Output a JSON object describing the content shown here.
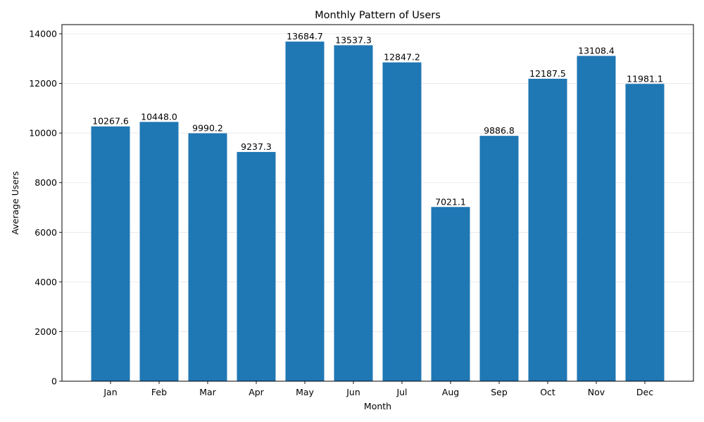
{
  "chart_data": {
    "type": "bar",
    "title": "Monthly Pattern of Users",
    "xlabel": "Month",
    "ylabel": "Average Users",
    "categories": [
      "Jan",
      "Feb",
      "Mar",
      "Apr",
      "May",
      "Jun",
      "Jul",
      "Aug",
      "Sep",
      "Oct",
      "Nov",
      "Dec"
    ],
    "values": [
      10267.6,
      10448.0,
      9990.2,
      9237.3,
      13684.7,
      13537.3,
      12847.2,
      7021.1,
      9886.8,
      12187.5,
      13108.4,
      11981.1
    ],
    "value_labels": [
      "10267.6",
      "10448.0",
      "9990.2",
      "9237.3",
      "13684.7",
      "13537.3",
      "12847.2",
      "7021.1",
      "9886.8",
      "12187.5",
      "13108.4",
      "11981.1"
    ],
    "ylim": [
      0,
      14368.9
    ],
    "yticks": [
      0,
      2000,
      4000,
      6000,
      8000,
      10000,
      12000,
      14000
    ],
    "ytick_labels": [
      "0",
      "2000",
      "4000",
      "6000",
      "8000",
      "10000",
      "12000",
      "14000"
    ],
    "grid": "horizontal",
    "bar_color": "#1f77b4"
  }
}
